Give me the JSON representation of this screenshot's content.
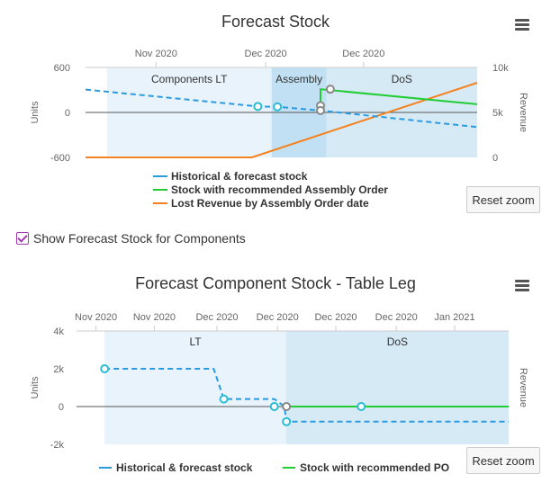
{
  "toggle": {
    "label": "Show Forecast Stock for Components",
    "checked": true
  },
  "reset_label": "Reset zoom",
  "chart_data": [
    {
      "type": "line",
      "title": "Forecast Stock",
      "ylabel": "Units",
      "ylabel_right": "Revenue",
      "x_ticks": [
        "Nov 2020",
        "Dec 2020",
        "Dec 2020"
      ],
      "y_ticks": [
        "600",
        "0",
        "-600"
      ],
      "ylim": [
        -600,
        600
      ],
      "y2_ticks": [
        "10k",
        "5k",
        "0"
      ],
      "y2lim": [
        0,
        10000
      ],
      "bands": [
        {
          "label": "Components LT",
          "color": "#e8f3fb"
        },
        {
          "label": "Assembly",
          "color": "#c2e0f3"
        },
        {
          "label": "DoS",
          "color": "#d6eaf6"
        }
      ],
      "colors": {
        "historical": "#2b9be0",
        "recommended": "#22cc33",
        "lost": "#f58220",
        "marker": "#888888",
        "marker_hist": "#2bbcd4"
      },
      "series": [
        {
          "name": "Historical & forecast stock",
          "points": [
            [
              0,
              305
            ],
            [
              0.44,
              80
            ],
            [
              0.49,
              75
            ],
            [
              0.6,
              25
            ],
            [
              1.0,
              -195
            ]
          ]
        },
        {
          "name": "Stock with recommended Assembly Order",
          "points": [
            [
              0.6,
              90
            ],
            [
              0.6,
              310
            ],
            [
              1.0,
              110
            ]
          ]
        },
        {
          "name": "Lost Revenue by Assembly Order date",
          "points": [
            [
              0,
              0
            ],
            [
              0.425,
              0
            ],
            [
              1.0,
              8300
            ]
          ]
        }
      ]
    },
    {
      "type": "line",
      "title": "Forecast Component Stock - Table Leg",
      "ylabel": "Units",
      "ylabel_right": "Revenue",
      "x_ticks": [
        "Nov 2020",
        "Nov 2020",
        "Dec 2020",
        "Dec 2020",
        "Dec 2020",
        "Dec 2020",
        "Jan 2021"
      ],
      "y_ticks": [
        "4k",
        "2k",
        "0",
        "-2k"
      ],
      "ylim": [
        -2000,
        4000
      ],
      "bands": [
        {
          "label": "LT",
          "color": "#e8f3fb"
        },
        {
          "label": "DoS",
          "color": "#d6eaf6"
        }
      ],
      "colors": {
        "historical": "#2b9be0",
        "recommended": "#22cc33",
        "marker": "#888888",
        "marker_hist": "#2bbcd4"
      },
      "series": [
        {
          "name": "Historical & forecast stock",
          "points": [
            [
              0,
              2000
            ],
            [
              0.27,
              2000
            ],
            [
              0.295,
              400
            ],
            [
              0.42,
              400
            ],
            [
              0.445,
              0
            ],
            [
              0.45,
              -800
            ],
            [
              1.0,
              -800
            ]
          ]
        },
        {
          "name": "Stock with recommended PO",
          "points": [
            [
              0.45,
              0
            ],
            [
              1.0,
              0
            ]
          ]
        }
      ]
    }
  ]
}
